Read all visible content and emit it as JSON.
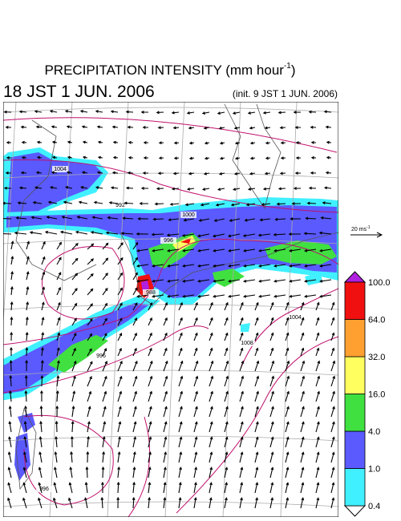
{
  "header": {
    "title": "PRECIPITATION INTENSITY (mm hour",
    "title_exponent": "-1",
    "title_close": ")",
    "valid_time": "18 JST 1 JUN. 2006",
    "init_time": "(init. 9 JST 1 JUN. 2006)"
  },
  "reference_vector": {
    "label": "20 ms",
    "exponent": "-1"
  },
  "colorbar": {
    "levels": [
      {
        "value": 0.4,
        "label": "0.4"
      },
      {
        "value": 1,
        "label": "1.0"
      },
      {
        "value": 4,
        "label": "4.0"
      },
      {
        "value": 16,
        "label": "16.0"
      },
      {
        "value": 32,
        "label": "32.0"
      },
      {
        "value": 64,
        "label": "64.0"
      },
      {
        "value": 100,
        "label": "100.0"
      }
    ],
    "colors": [
      "#40f0ff",
      "#5a5aff",
      "#40e040",
      "#ffff60",
      "#ffa030",
      "#f01010"
    ],
    "under_color": "#ffffff",
    "over_color": "#b020e0"
  },
  "contour_labels": [
    1004,
    1000,
    996,
    992,
    988,
    1004,
    1008,
    996,
    996
  ]
}
